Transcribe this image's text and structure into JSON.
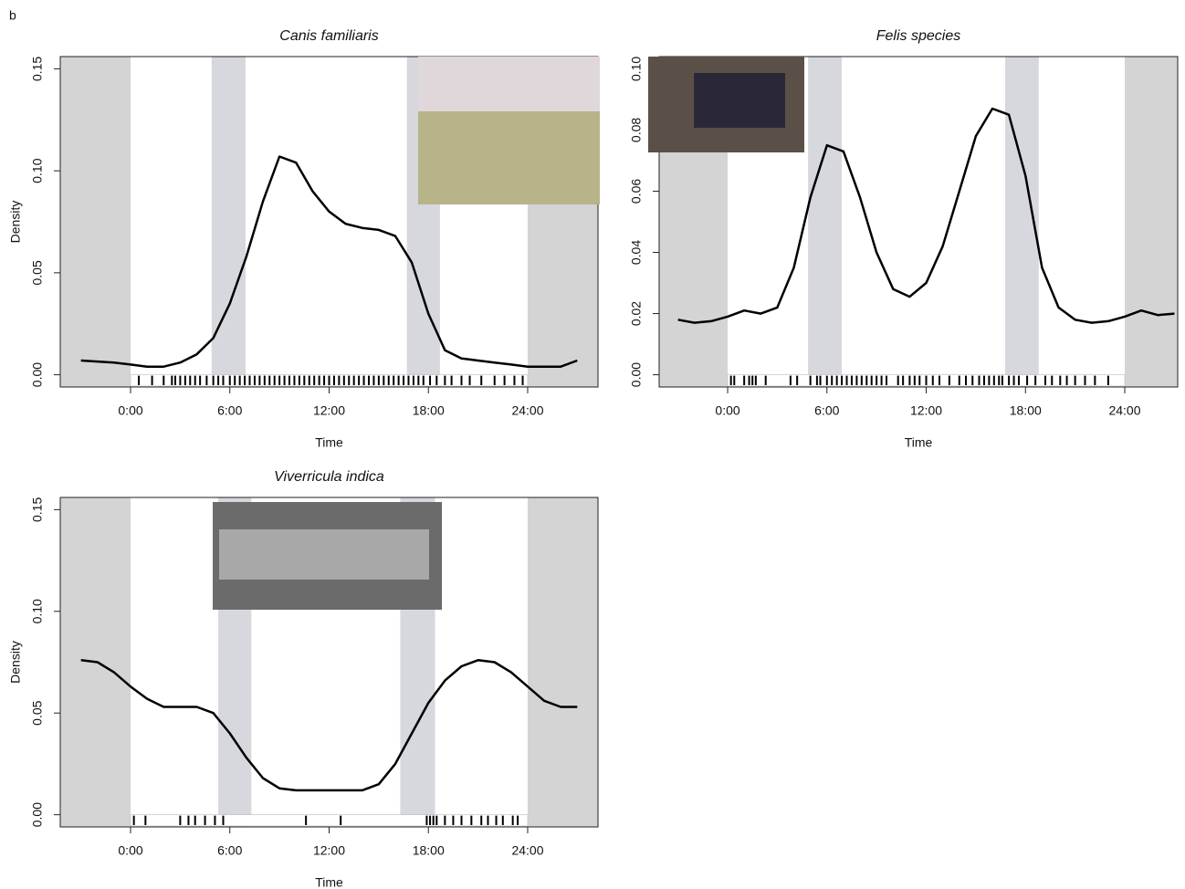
{
  "panel_label": "b",
  "chart_data": [
    {
      "type": "line",
      "title": "Canis familiaris",
      "xlabel": "Time",
      "ylabel": "Density",
      "xlim": [
        -4.25,
        28.25
      ],
      "ylim": [
        -0.006,
        0.156
      ],
      "xticks": [
        {
          "value": 0,
          "label": "0:00"
        },
        {
          "value": 6,
          "label": "6:00"
        },
        {
          "value": 12,
          "label": "12:00"
        },
        {
          "value": 18,
          "label": "18:00"
        },
        {
          "value": 24,
          "label": "24:00"
        }
      ],
      "yticks": [
        {
          "value": 0,
          "label": "0.00"
        },
        {
          "value": 0.05,
          "label": "0.05"
        },
        {
          "value": 0.1,
          "label": "0.10"
        },
        {
          "value": 0.15,
          "label": "0.15"
        }
      ],
      "shading": [
        {
          "range": [
            -4.25,
            0
          ],
          "color": "#d4d4d4"
        },
        {
          "range": [
            4.9,
            6.95
          ],
          "color": "#d7d7de"
        },
        {
          "range": [
            16.7,
            18.7
          ],
          "color": "#d7d7de"
        },
        {
          "range": [
            24,
            28.25
          ],
          "color": "#d4d4d4"
        }
      ],
      "x": [
        -3,
        -2,
        -1,
        0,
        1,
        2,
        3,
        4,
        5,
        6,
        7,
        8,
        9,
        10,
        11,
        12,
        13,
        14,
        15,
        16,
        17,
        18,
        19,
        20,
        21,
        22,
        23,
        24,
        25,
        26,
        27
      ],
      "series": [
        {
          "color": "#000000",
          "values": [
            0.007,
            0.0065,
            0.006,
            0.005,
            0.004,
            0.004,
            0.006,
            0.01,
            0.018,
            0.035,
            0.058,
            0.085,
            0.107,
            0.104,
            0.09,
            0.08,
            0.074,
            0.072,
            0.071,
            0.068,
            0.055,
            0.03,
            0.012,
            0.008,
            0.007,
            0.006,
            0.005,
            0.004,
            0.004,
            0.004,
            0.007
          ]
        }
      ],
      "rug": [
        0.5,
        1.3,
        2.0,
        2.5,
        2.7,
        3.0,
        3.3,
        3.6,
        3.9,
        4.2,
        4.6,
        5.0,
        5.3,
        5.6,
        6.0,
        6.3,
        6.6,
        6.9,
        7.2,
        7.5,
        7.8,
        8.1,
        8.4,
        8.7,
        9.0,
        9.3,
        9.6,
        9.9,
        10.2,
        10.5,
        10.8,
        11.1,
        11.4,
        11.7,
        12.0,
        12.3,
        12.6,
        12.9,
        13.2,
        13.5,
        13.8,
        14.1,
        14.4,
        14.7,
        15.0,
        15.3,
        15.6,
        15.9,
        16.2,
        16.5,
        16.8,
        17.1,
        17.4,
        17.7,
        18.1,
        18.5,
        19.0,
        19.4,
        20.0,
        20.5,
        21.2,
        22.0,
        22.6,
        23.2,
        23.7
      ]
    },
    {
      "type": "line",
      "title": "Felis species",
      "xlabel": "Time",
      "xlim": [
        -4.14,
        27.2
      ],
      "ylim": [
        -0.004,
        0.104
      ],
      "xticks": [
        {
          "value": 0,
          "label": "0:00"
        },
        {
          "value": 6,
          "label": "6:00"
        },
        {
          "value": 12,
          "label": "12:00"
        },
        {
          "value": 18,
          "label": "18:00"
        },
        {
          "value": 24,
          "label": "24:00"
        }
      ],
      "yticks": [
        {
          "value": 0,
          "label": "0.00"
        },
        {
          "value": 0.02,
          "label": "0.02"
        },
        {
          "value": 0.04,
          "label": "0.04"
        },
        {
          "value": 0.06,
          "label": "0.06"
        },
        {
          "value": 0.08,
          "label": "0.08"
        },
        {
          "value": 0.1,
          "label": "0.10"
        }
      ],
      "shading": [
        {
          "range": [
            -4.14,
            0
          ],
          "color": "#d4d4d4"
        },
        {
          "range": [
            4.86,
            6.9
          ],
          "color": "#d7d7de"
        },
        {
          "range": [
            16.77,
            18.8
          ],
          "color": "#d7d7de"
        },
        {
          "range": [
            24,
            27.2
          ],
          "color": "#d4d4d4"
        }
      ],
      "x": [
        -3,
        -2,
        -1,
        0,
        1,
        2,
        3,
        4,
        5,
        6,
        7,
        8,
        9,
        10,
        11,
        12,
        13,
        14,
        15,
        16,
        17,
        18,
        19,
        20,
        21,
        22,
        23,
        24,
        25,
        26,
        27
      ],
      "series": [
        {
          "color": "#000000",
          "values": [
            0.018,
            0.017,
            0.0175,
            0.019,
            0.021,
            0.02,
            0.022,
            0.035,
            0.058,
            0.075,
            0.073,
            0.058,
            0.04,
            0.028,
            0.0255,
            0.03,
            0.042,
            0.06,
            0.078,
            0.087,
            0.085,
            0.065,
            0.035,
            0.022,
            0.018,
            0.017,
            0.0175,
            0.019,
            0.021,
            0.0195,
            0.02
          ]
        }
      ],
      "rug": [
        0.2,
        0.4,
        1.0,
        1.3,
        1.5,
        1.7,
        2.3,
        3.8,
        4.2,
        5.0,
        5.4,
        5.6,
        6.0,
        6.3,
        6.6,
        6.9,
        7.2,
        7.5,
        7.8,
        8.1,
        8.4,
        8.7,
        9.0,
        9.3,
        9.6,
        10.3,
        10.6,
        11.0,
        11.3,
        11.6,
        12.0,
        12.4,
        12.8,
        13.4,
        14.0,
        14.4,
        14.8,
        15.2,
        15.5,
        15.8,
        16.1,
        16.4,
        16.6,
        17.0,
        17.3,
        17.6,
        18.1,
        18.6,
        19.2,
        19.6,
        20.1,
        20.5,
        21.0,
        21.6,
        22.2,
        23.0
      ]
    },
    {
      "type": "line",
      "title": "Viverricula indica",
      "xlabel": "Time",
      "ylabel": "Density",
      "xlim": [
        -4.25,
        28.25
      ],
      "ylim": [
        -0.006,
        0.156
      ],
      "xticks": [
        {
          "value": 0,
          "label": "0:00"
        },
        {
          "value": 6,
          "label": "6:00"
        },
        {
          "value": 12,
          "label": "12:00"
        },
        {
          "value": 18,
          "label": "18:00"
        },
        {
          "value": 24,
          "label": "24:00"
        }
      ],
      "yticks": [
        {
          "value": 0,
          "label": "0.00"
        },
        {
          "value": 0.05,
          "label": "0.05"
        },
        {
          "value": 0.1,
          "label": "0.10"
        },
        {
          "value": 0.15,
          "label": "0.15"
        }
      ],
      "shading": [
        {
          "range": [
            -4.25,
            0
          ],
          "color": "#d4d4d4"
        },
        {
          "range": [
            5.3,
            7.3
          ],
          "color": "#d7d7de"
        },
        {
          "range": [
            16.3,
            18.4
          ],
          "color": "#d7d7de"
        },
        {
          "range": [
            24,
            28.25
          ],
          "color": "#d4d4d4"
        }
      ],
      "x": [
        -3,
        -2,
        -1,
        0,
        1,
        2,
        3,
        4,
        5,
        6,
        7,
        8,
        9,
        10,
        11,
        12,
        13,
        14,
        15,
        16,
        17,
        18,
        19,
        20,
        21,
        22,
        23,
        24,
        25,
        26,
        27
      ],
      "series": [
        {
          "color": "#000000",
          "values": [
            0.076,
            0.075,
            0.07,
            0.063,
            0.057,
            0.053,
            0.053,
            0.053,
            0.05,
            0.04,
            0.028,
            0.018,
            0.013,
            0.012,
            0.012,
            0.012,
            0.012,
            0.012,
            0.015,
            0.025,
            0.04,
            0.055,
            0.066,
            0.073,
            0.076,
            0.075,
            0.07,
            0.063,
            0.056,
            0.053,
            0.053
          ]
        }
      ],
      "rug": [
        0.2,
        0.9,
        3.0,
        3.5,
        3.9,
        4.5,
        5.1,
        5.6,
        10.6,
        12.7,
        17.9,
        18.1,
        18.3,
        18.5,
        19.0,
        19.5,
        20.0,
        20.6,
        21.2,
        21.6,
        22.1,
        22.5,
        23.1,
        23.4
      ]
    }
  ]
}
